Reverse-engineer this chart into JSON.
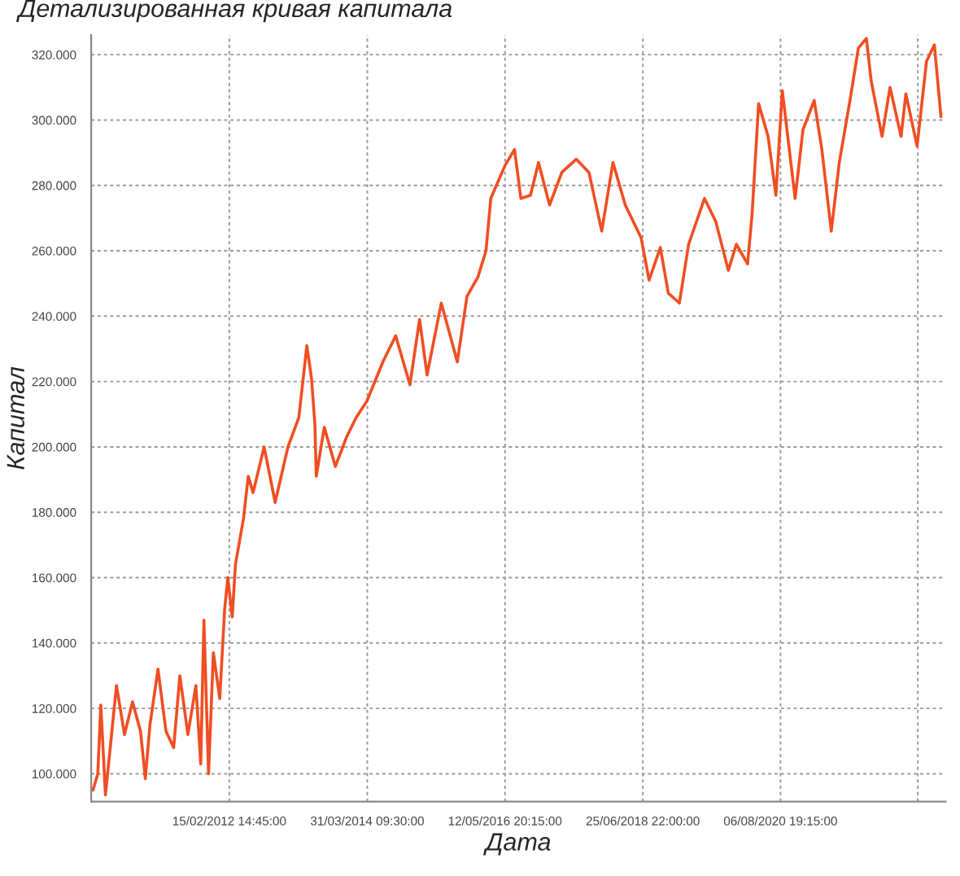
{
  "chart_data": {
    "type": "line",
    "title": "Детализированная кривая капитала",
    "xlabel": "Дата",
    "ylabel": "Капитал",
    "x": [
      "2010-01-11",
      "2010-02-07",
      "2010-02-24",
      "2010-03-22",
      "2010-04-18",
      "2010-05-23",
      "2010-07-07",
      "2010-08-21",
      "2010-10-05",
      "2010-11-01",
      "2010-11-27",
      "2011-01-11",
      "2011-02-25",
      "2011-04-09",
      "2011-05-14",
      "2011-06-28",
      "2011-08-12",
      "2011-09-08",
      "2011-09-26",
      "2011-10-22",
      "2011-11-18",
      "2011-12-24",
      "2012-01-20",
      "2012-02-07",
      "2012-03-03",
      "2012-03-21",
      "2012-05-05",
      "2012-06-01",
      "2012-06-28",
      "2012-08-29",
      "2012-10-30",
      "2013-01-10",
      "2013-03-12",
      "2013-04-26",
      "2013-05-22",
      "2013-06-10",
      "2013-06-18",
      "2013-08-02",
      "2013-10-03",
      "2013-12-05",
      "2014-01-28",
      "2014-03-29",
      "2014-06-27",
      "2014-09-07",
      "2014-11-26",
      "2015-01-19",
      "2015-03-02",
      "2015-05-21",
      "2015-08-19",
      "2015-10-12",
      "2015-12-13",
      "2016-01-27",
      "2016-02-23",
      "2016-05-12",
      "2016-07-05",
      "2016-08-10",
      "2016-10-03",
      "2016-11-17",
      "2017-01-18",
      "2017-03-28",
      "2017-06-17",
      "2017-08-27",
      "2017-11-07",
      "2018-01-09",
      "2018-03-19",
      "2018-06-16",
      "2018-07-31",
      "2018-10-02",
      "2018-11-16",
      "2019-01-17",
      "2019-03-10",
      "2019-06-07",
      "2019-08-09",
      "2019-10-19",
      "2019-12-03",
      "2020-02-04",
      "2020-02-29",
      "2020-04-06",
      "2020-05-29",
      "2020-07-12",
      "2020-08-17",
      "2020-10-28",
      "2020-12-11",
      "2021-02-12",
      "2021-03-27",
      "2021-05-19",
      "2021-07-03",
      "2021-09-04",
      "2021-10-18",
      "2021-12-02",
      "2021-12-29",
      "2022-02-28",
      "2022-04-14",
      "2022-06-15",
      "2022-07-12",
      "2022-09-13",
      "2022-11-05",
      "2022-12-19",
      "2023-01-25"
    ],
    "series": [
      {
        "color": "#f04e23",
        "values": [
          95000,
          100000,
          121000,
          93500,
          108000,
          127000,
          112000,
          122000,
          113000,
          98500,
          115000,
          132000,
          113000,
          108000,
          130000,
          112000,
          127000,
          103000,
          147000,
          100000,
          137000,
          123000,
          150000,
          160000,
          148000,
          164000,
          178000,
          191000,
          186000,
          200000,
          183000,
          200000,
          209000,
          231000,
          221000,
          207000,
          191000,
          206000,
          194000,
          203000,
          209000,
          214000,
          226000,
          234000,
          219000,
          239000,
          222000,
          244000,
          226000,
          246000,
          252000,
          260000,
          276000,
          286000,
          291000,
          276000,
          277000,
          287000,
          274000,
          284000,
          288000,
          284000,
          266000,
          287000,
          274000,
          264000,
          251000,
          261000,
          247000,
          244000,
          262000,
          276000,
          269000,
          254000,
          262000,
          256000,
          271000,
          305000,
          295000,
          277000,
          309000,
          276000,
          297000,
          306000,
          291000,
          266000,
          287000,
          307000,
          322000,
          325000,
          312000,
          295000,
          310000,
          295000,
          308000,
          292000,
          318000,
          323000,
          301000
        ]
      }
    ],
    "xlim": [
      "2010-01-01",
      "2023-02-20"
    ],
    "xticks": [
      {
        "value": "2012-02-15T14:45",
        "label": "15/02/2012 14:45:00"
      },
      {
        "value": "2014-03-31T09:30",
        "label": "31/03/2014 09:30:00"
      },
      {
        "value": "2016-05-12T20:15",
        "label": "12/05/2016 20:15:00"
      },
      {
        "value": "2018-06-25T22:00",
        "label": "25/06/2018 22:00:00"
      },
      {
        "value": "2020-08-06T19:15",
        "label": "06/08/2020 19:15:00"
      },
      {
        "value": "2022-09-17",
        "label": null
      }
    ],
    "ylim": [
      91500,
      326000
    ],
    "yticks": [
      {
        "value": 100000,
        "label": "100.000"
      },
      {
        "value": 120000,
        "label": "120.000"
      },
      {
        "value": 140000,
        "label": "140.000"
      },
      {
        "value": 160000,
        "label": "160.000"
      },
      {
        "value": 180000,
        "label": "180.000"
      },
      {
        "value": 200000,
        "label": "200.000"
      },
      {
        "value": 220000,
        "label": "220.000"
      },
      {
        "value": 240000,
        "label": "240.000"
      },
      {
        "value": 260000,
        "label": "260.000"
      },
      {
        "value": 280000,
        "label": "280.000"
      },
      {
        "value": 300000,
        "label": "300.000"
      },
      {
        "value": 320000,
        "label": "320.000"
      }
    ],
    "grid": true,
    "legend": false
  }
}
